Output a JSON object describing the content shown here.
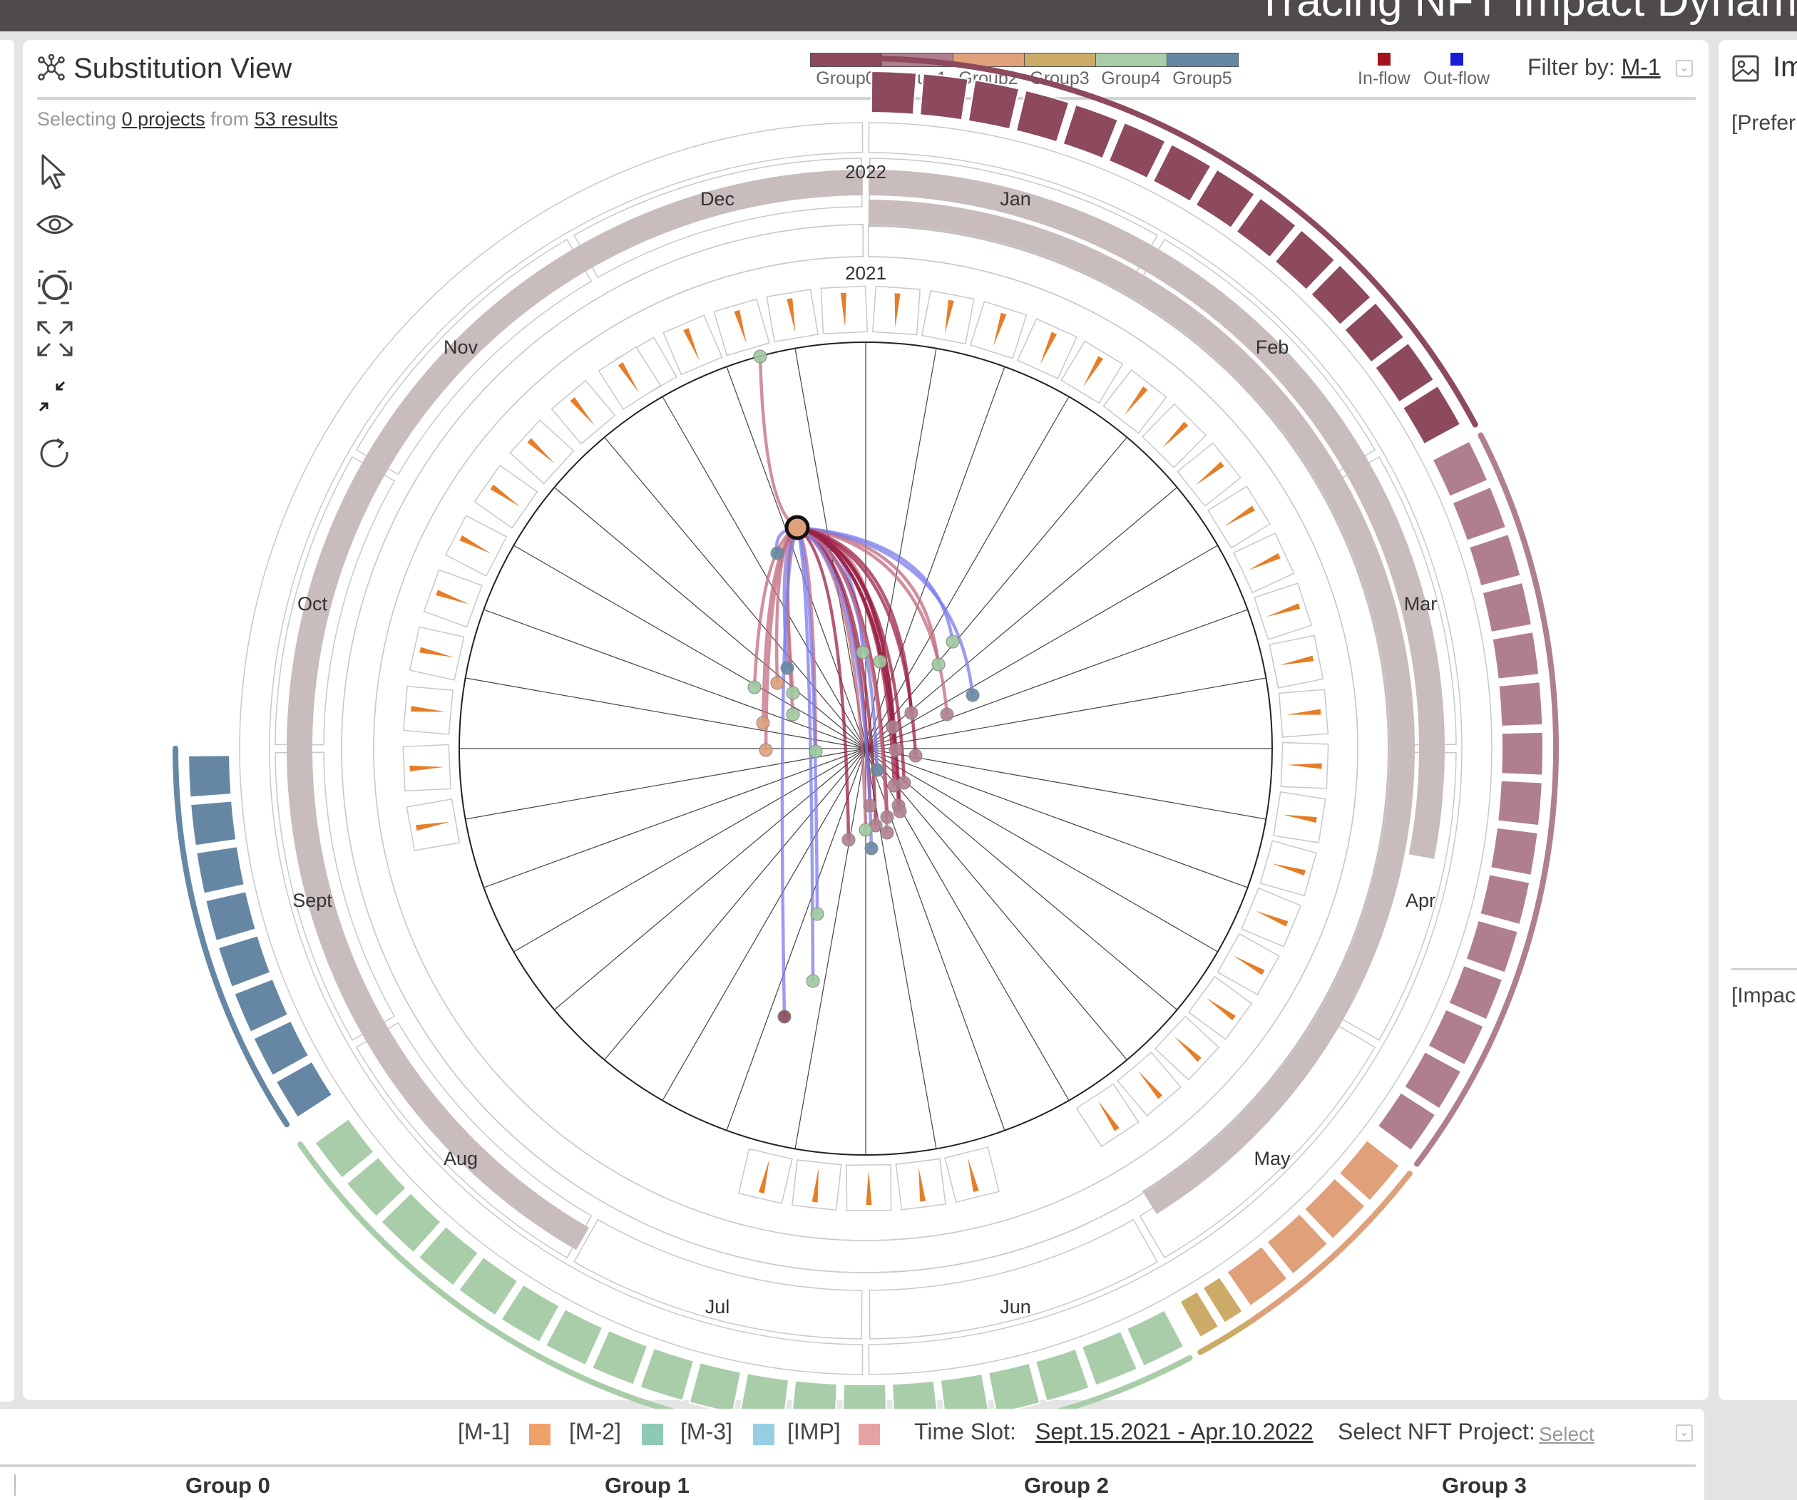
{
  "header": {
    "title": "Tracing NFT Impact Dynam"
  },
  "substitution_view": {
    "title": "Substitution View",
    "icon": "network-icon",
    "legend": {
      "groups": [
        {
          "label": "Group0",
          "color": "#8c4a5c"
        },
        {
          "label": "Group1",
          "color": "#b07f8f"
        },
        {
          "label": "Group2",
          "color": "#dfa07a"
        },
        {
          "label": "Group3",
          "color": "#ccab68"
        },
        {
          "label": "Group4",
          "color": "#a9cca9"
        },
        {
          "label": "Group5",
          "color": "#6687a4"
        }
      ],
      "inflow": {
        "label": "In-flow",
        "color": "#a4121c"
      },
      "outflow": {
        "label": "Out-flow",
        "color": "#1a1ad8"
      }
    },
    "filter": {
      "label": "Filter by:",
      "value": "M-1"
    },
    "selection": {
      "prefix": "Selecting",
      "count_text": "0 projects",
      "mid": "from",
      "results_text": "53 results"
    },
    "tools": [
      "pointer-icon",
      "eye-icon",
      "lasso-select-icon",
      "expand-icon",
      "collapse-icon",
      "reset-icon"
    ],
    "radial": {
      "year_labels": [
        "2022",
        "2021"
      ],
      "month_labels": [
        "Jan",
        "Feb",
        "Mar",
        "Apr",
        "May",
        "Jun",
        "Jul",
        "Aug",
        "Sept",
        "Oct",
        "Nov",
        "Dec"
      ]
    }
  },
  "right_panel": {
    "title": "Im",
    "preference_label": "[Prefer",
    "impact_label": "[Impac"
  },
  "bottom_bar": {
    "legend": [
      {
        "label": "[M-1]",
        "color": "#eda16b"
      },
      {
        "label": "[M-2]",
        "color": "#8ec9b4"
      },
      {
        "label": "[M-3]",
        "color": "#96cde3"
      },
      {
        "label": "[IMP]",
        "color": "#e5a2a2"
      }
    ],
    "time_slot_label": "Time Slot:",
    "time_slot_value": "Sept.15.2021 - Apr.10.2022",
    "project_label": "Select NFT Project:",
    "project_value": "Select",
    "groups": [
      "Group 0",
      "Group 1",
      "Group 2",
      "Group 3"
    ]
  }
}
